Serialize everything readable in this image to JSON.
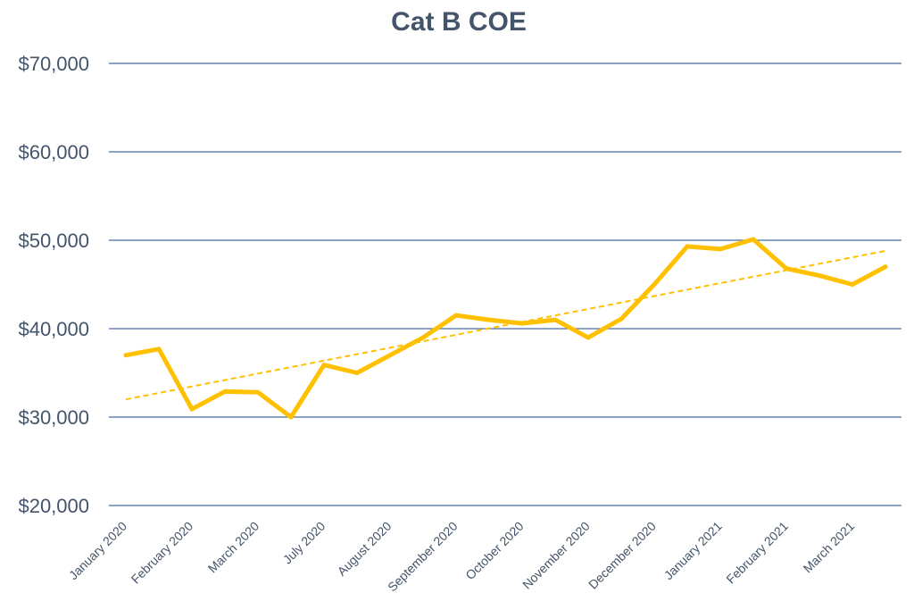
{
  "chart_data": {
    "type": "line",
    "title": "Cat B COE",
    "xlabel": "",
    "ylabel": "",
    "ylim": [
      20000,
      70000
    ],
    "y_ticks": [
      20000,
      30000,
      40000,
      50000,
      60000,
      70000
    ],
    "y_tick_labels": [
      "$20,000",
      "$30,000",
      "$40,000",
      "$50,000",
      "$60,000",
      "$70,000"
    ],
    "x_tick_labels": [
      "January 2020",
      "February 2020",
      "March 2020",
      "July 2020",
      "August 2020",
      "September 2020",
      "October 2020",
      "November 2020",
      "December 2020",
      "January 2021",
      "February 2021",
      "March 2021"
    ],
    "grid": true,
    "legend": "none",
    "series": [
      {
        "values": [
          37000,
          37700,
          30900,
          32900,
          32800,
          30000,
          35900,
          35000,
          37000,
          39000,
          41500,
          41000,
          40600,
          41000,
          39000,
          41100,
          45000,
          49300,
          49000,
          50100,
          46800,
          46000,
          45000,
          47000
        ],
        "color": "#ffc000",
        "style": "solid"
      }
    ],
    "trendline": {
      "start": 32000,
      "end": 48800,
      "color": "#ffc000",
      "style": "dashed"
    }
  }
}
